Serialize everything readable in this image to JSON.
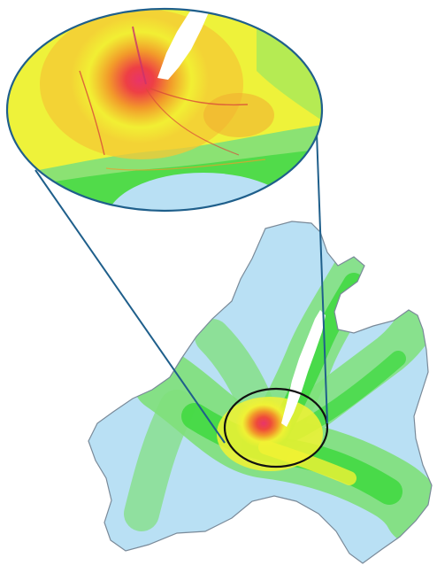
{
  "map": {
    "kind": "density heatmap of a region with a magnified inset",
    "colors": {
      "low": "#a9d8f2",
      "low_mid": "#7fe07a",
      "mid": "#39d839",
      "high_mid": "#f2f233",
      "high": "#f29a2a",
      "peak": "#e8346a",
      "lake": "#ffffff",
      "border": "#7a8a99",
      "callout": "#1f5f8b",
      "focus_ring": "#111111"
    },
    "labels": []
  }
}
